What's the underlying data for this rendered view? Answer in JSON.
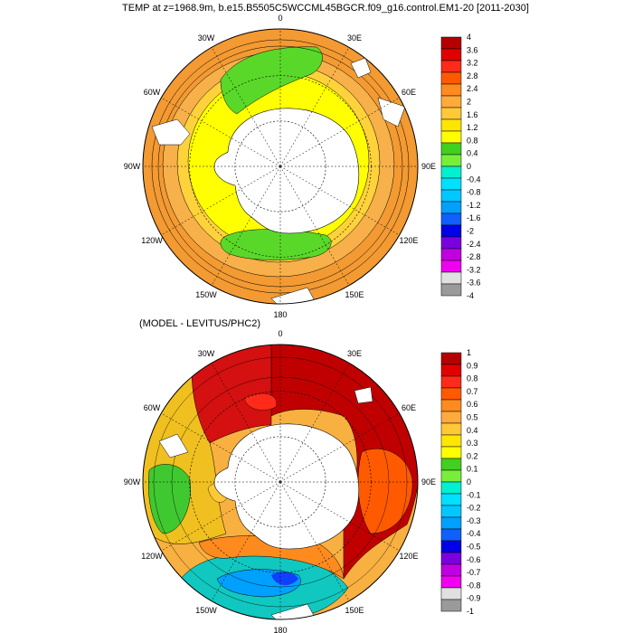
{
  "titles": {
    "top": "TEMP at z=1968.9m, b.e15.B5505C5WCCML45BGCR.f09_g16.control.EM1-20 [2011-2030]",
    "bottom": "(MODEL - LEVITUS/PHC2)"
  },
  "longitude_labels": [
    "0",
    "30E",
    "60E",
    "90E",
    "120E",
    "150E",
    "180",
    "150W",
    "120W",
    "90W",
    "60W",
    "30W"
  ],
  "maps": [
    {
      "name": "model-temperature",
      "colorbar_labels": [
        "4",
        "3.6",
        "3.2",
        "2.8",
        "2.4",
        "2",
        "1.6",
        "1.2",
        "0.8",
        "0.4",
        "0",
        "-0.4",
        "-0.8",
        "-1.2",
        "-1.6",
        "-2",
        "-2.4",
        "-2.8",
        "-3.2",
        "-3.6",
        "-4"
      ],
      "colorbar_colors": [
        "#b50000",
        "#e00000",
        "#ff2a1a",
        "#ff5a00",
        "#ff8a1e",
        "#ffaa3c",
        "#ffc837",
        "#ffe600",
        "#ffff00",
        "#40d020",
        "#79ee3a",
        "#00f0d0",
        "#00e0ff",
        "#00c8ff",
        "#00a0ff",
        "#1060ff",
        "#0000e8",
        "#7a00e0",
        "#c000e0",
        "#f000f0",
        "#e0e0e0",
        "#9a9a9a"
      ]
    },
    {
      "name": "model-minus-levitus",
      "colorbar_labels": [
        "1",
        "0.9",
        "0.8",
        "0.7",
        "0.6",
        "0.5",
        "0.4",
        "0.3",
        "0.2",
        "0.1",
        "0",
        "-0.1",
        "-0.2",
        "-0.3",
        "-0.4",
        "-0.5",
        "-0.6",
        "-0.7",
        "-0.8",
        "-0.9",
        "-1"
      ],
      "colorbar_colors": [
        "#b50000",
        "#e00000",
        "#ff2a1a",
        "#ff5a00",
        "#ff8a1e",
        "#ffaa3c",
        "#ffc837",
        "#ffe600",
        "#ffff00",
        "#40d020",
        "#79ee3a",
        "#00f0d0",
        "#00e0ff",
        "#00c8ff",
        "#00a0ff",
        "#1060ff",
        "#0000e8",
        "#7a00e0",
        "#c000e0",
        "#f000f0",
        "#e0e0e0",
        "#9a9a9a"
      ]
    }
  ]
}
